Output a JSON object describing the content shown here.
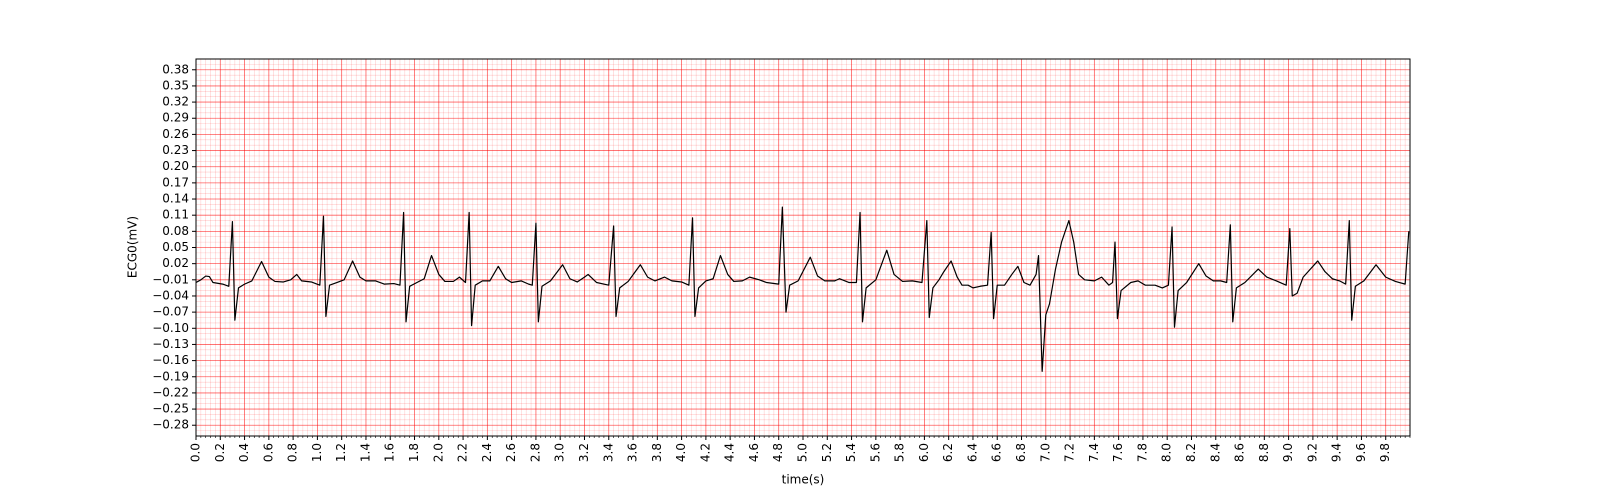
{
  "chart_data": {
    "type": "line",
    "xlabel": "time(s)",
    "ylabel": "ECG0(mV)",
    "color": "#000000",
    "grid": true,
    "grid_color": "#ff0000",
    "xlim": [
      0,
      10
    ],
    "ylim": [
      -0.3,
      0.4
    ],
    "xticks": [
      {
        "value": 0,
        "label": "0.0"
      },
      0.2,
      0.4,
      0.6,
      0.8,
      {
        "value": 1,
        "label": "1.0"
      },
      1.2,
      1.4,
      1.6,
      1.8,
      {
        "value": 2,
        "label": "2.0"
      },
      2.2,
      2.4,
      2.6,
      2.8,
      {
        "value": 3,
        "label": "3.0"
      },
      3.2,
      3.4,
      3.6,
      3.8,
      {
        "value": 4,
        "label": "4.0"
      },
      4.2,
      4.4,
      4.6,
      4.8,
      {
        "value": 5,
        "label": "5.0"
      },
      5.2,
      5.4,
      5.6,
      5.8,
      {
        "value": 6,
        "label": "6.0"
      },
      6.2,
      6.4,
      6.6,
      6.8,
      {
        "value": 7,
        "label": "7.0"
      },
      7.2,
      7.4,
      7.6,
      7.8,
      {
        "value": 8,
        "label": "8.0"
      },
      8.2,
      8.4,
      8.6,
      8.8,
      {
        "value": 9,
        "label": "9.0"
      },
      9.2,
      9.4,
      9.6,
      9.8
    ],
    "yticks": [
      0.38,
      0.35,
      0.32,
      0.29,
      0.26,
      0.23,
      {
        "value": 0.2,
        "label": "0.20"
      },
      0.17,
      0.14,
      0.11,
      0.08,
      0.05,
      0.02,
      {
        "value": -0.01,
        "label": "−0.01"
      },
      {
        "value": -0.04,
        "label": "−0.04"
      },
      {
        "value": -0.07,
        "label": "−0.07"
      },
      {
        "value": -0.1,
        "label": "−0.10"
      },
      {
        "value": -0.13,
        "label": "−0.13"
      },
      {
        "value": -0.16,
        "label": "−0.16"
      },
      {
        "value": -0.19,
        "label": "−0.19"
      },
      {
        "value": -0.22,
        "label": "−0.22"
      },
      {
        "value": -0.25,
        "label": "−0.25"
      },
      {
        "value": -0.28,
        "label": "−0.28"
      }
    ],
    "x": [
      0.0,
      0.04,
      0.08,
      0.11,
      0.14,
      0.22,
      0.27,
      0.3,
      0.32,
      0.35,
      0.4,
      0.46,
      0.54,
      0.6,
      0.65,
      0.72,
      0.78,
      0.83,
      0.87,
      0.95,
      1.02,
      1.05,
      1.07,
      1.1,
      1.16,
      1.22,
      1.29,
      1.35,
      1.4,
      1.48,
      1.55,
      1.63,
      1.68,
      1.71,
      1.73,
      1.76,
      1.82,
      1.88,
      1.94,
      2.0,
      2.05,
      2.12,
      2.17,
      2.22,
      2.25,
      2.27,
      2.3,
      2.36,
      2.42,
      2.49,
      2.55,
      2.6,
      2.68,
      2.74,
      2.77,
      2.8,
      2.82,
      2.85,
      2.92,
      3.02,
      3.08,
      3.14,
      3.2,
      3.23,
      3.3,
      3.4,
      3.44,
      3.46,
      3.49,
      3.56,
      3.66,
      3.72,
      3.78,
      3.86,
      3.92,
      4.0,
      4.06,
      4.09,
      4.11,
      4.14,
      4.2,
      4.26,
      4.32,
      4.38,
      4.43,
      4.5,
      4.56,
      4.64,
      4.7,
      4.8,
      4.83,
      4.86,
      4.89,
      4.96,
      5.06,
      5.12,
      5.18,
      5.26,
      5.3,
      5.38,
      5.44,
      5.47,
      5.49,
      5.52,
      5.6,
      5.69,
      5.75,
      5.82,
      5.9,
      5.98,
      6.02,
      6.04,
      6.07,
      6.12,
      6.16,
      6.22,
      6.27,
      6.31,
      6.36,
      6.4,
      6.46,
      6.52,
      6.55,
      6.57,
      6.6,
      6.66,
      6.72,
      6.77,
      6.82,
      6.87,
      6.92,
      6.94,
      6.97,
      7.0,
      7.03,
      7.08,
      7.13,
      7.19,
      7.23,
      7.27,
      7.32,
      7.4,
      7.46,
      7.52,
      7.55,
      7.57,
      7.59,
      7.62,
      7.7,
      7.76,
      7.82,
      7.9,
      7.96,
      8.01,
      8.04,
      8.06,
      8.09,
      8.16,
      8.26,
      8.32,
      8.38,
      8.44,
      8.49,
      8.52,
      8.54,
      8.57,
      8.64,
      8.75,
      8.82,
      8.9,
      8.98,
      9.01,
      9.03,
      9.07,
      9.12,
      9.16,
      9.24,
      9.3,
      9.36,
      9.42,
      9.47,
      9.5,
      9.52,
      9.55,
      9.62,
      9.72,
      9.8,
      9.88,
      9.96,
      9.99
    ],
    "values": [
      -0.015,
      -0.01,
      -0.003,
      -0.004,
      -0.015,
      -0.018,
      -0.022,
      0.098,
      -0.085,
      -0.025,
      -0.018,
      -0.012,
      0.024,
      -0.005,
      -0.013,
      -0.014,
      -0.01,
      0.0,
      -0.012,
      -0.014,
      -0.02,
      0.108,
      -0.078,
      -0.02,
      -0.015,
      -0.01,
      0.025,
      -0.005,
      -0.012,
      -0.012,
      -0.018,
      -0.017,
      -0.02,
      0.115,
      -0.088,
      -0.022,
      -0.015,
      -0.008,
      0.035,
      0.0,
      -0.013,
      -0.013,
      -0.005,
      -0.015,
      0.115,
      -0.095,
      -0.02,
      -0.012,
      -0.012,
      0.015,
      -0.008,
      -0.015,
      -0.012,
      -0.018,
      -0.02,
      0.095,
      -0.088,
      -0.022,
      -0.012,
      0.018,
      -0.008,
      -0.014,
      -0.005,
      0.0,
      -0.015,
      -0.02,
      0.09,
      -0.078,
      -0.025,
      -0.013,
      0.018,
      -0.005,
      -0.012,
      -0.005,
      -0.012,
      -0.014,
      -0.02,
      0.105,
      -0.078,
      -0.025,
      -0.012,
      -0.008,
      0.035,
      0.0,
      -0.013,
      -0.012,
      -0.005,
      -0.01,
      -0.015,
      -0.018,
      0.125,
      -0.07,
      -0.02,
      -0.012,
      0.032,
      -0.003,
      -0.012,
      -0.012,
      -0.008,
      -0.015,
      -0.015,
      0.115,
      -0.088,
      -0.025,
      -0.01,
      0.045,
      0.0,
      -0.013,
      -0.012,
      -0.015,
      0.1,
      -0.08,
      -0.025,
      -0.01,
      0.005,
      0.025,
      -0.005,
      -0.02,
      -0.02,
      -0.025,
      -0.022,
      -0.02,
      0.078,
      -0.082,
      -0.02,
      -0.02,
      0.0,
      0.015,
      -0.015,
      -0.02,
      0.0,
      0.035,
      -0.18,
      -0.075,
      -0.055,
      0.01,
      0.06,
      0.1,
      0.06,
      0.0,
      -0.01,
      -0.012,
      -0.005,
      -0.02,
      -0.015,
      0.06,
      -0.082,
      -0.03,
      -0.015,
      -0.012,
      -0.02,
      -0.02,
      -0.025,
      -0.02,
      0.088,
      -0.098,
      -0.03,
      -0.015,
      0.02,
      -0.003,
      -0.012,
      -0.012,
      -0.015,
      0.092,
      -0.088,
      -0.025,
      -0.015,
      0.01,
      -0.005,
      -0.012,
      -0.02,
      0.085,
      -0.04,
      -0.035,
      -0.005,
      0.005,
      0.025,
      0.005,
      -0.008,
      -0.012,
      -0.018,
      0.1,
      -0.085,
      -0.022,
      -0.012,
      0.018,
      -0.005,
      -0.013,
      -0.018,
      0.08
    ]
  }
}
